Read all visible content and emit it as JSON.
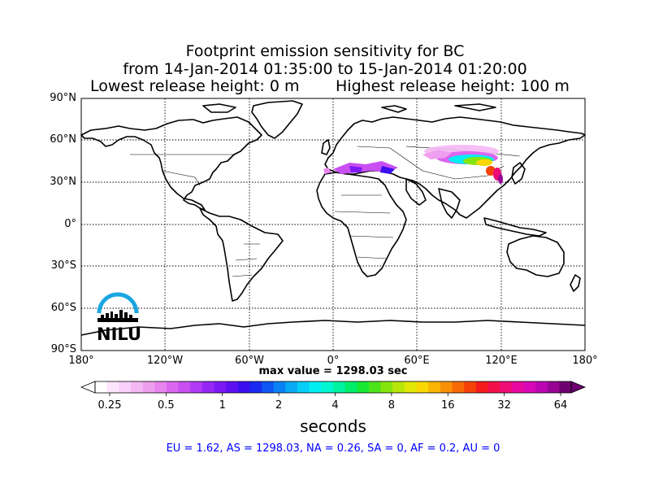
{
  "title": {
    "line1": "Footprint emission sensitivity for BC",
    "line2": "from 14-Jan-2014 01:35:00 to 15-Jan-2014 01:20:00",
    "lowest": "Lowest release height: 0 m",
    "highest": "Highest release height: 100 m"
  },
  "map": {
    "lat_labels": [
      "90°N",
      "60°N",
      "30°N",
      "0°",
      "30°S",
      "60°S",
      "90°S"
    ],
    "lon_labels": [
      "180°",
      "120°W",
      "60°W",
      "0°",
      "60°E",
      "120°E",
      "180°"
    ],
    "max_value": "max value = 1298.03 sec",
    "logo_text": "NILU"
  },
  "colorbar": {
    "ticks": [
      "0.25",
      "0.5",
      "1",
      "2",
      "4",
      "8",
      "16",
      "32",
      "64"
    ],
    "colors": [
      "#ffffff",
      "#fde6fd",
      "#f9d0f9",
      "#f4b8f4",
      "#ef9fef",
      "#e884ee",
      "#dc66f0",
      "#c94ff2",
      "#b03af5",
      "#9628f5",
      "#7c19f4",
      "#5e10f2",
      "#3b0ff0",
      "#1a2af0",
      "#0d56f2",
      "#0b82f4",
      "#08aaf5",
      "#05cff6",
      "#02eef3",
      "#00f7d2",
      "#00f3a0",
      "#00ee6a",
      "#18e832",
      "#4ee41a",
      "#86e40e",
      "#b9e60a",
      "#e1e808",
      "#f9d806",
      "#fbb505",
      "#f99005",
      "#f76a06",
      "#f54208",
      "#f41c1c",
      "#f2104a",
      "#ee0c76",
      "#e809a0",
      "#d808b8",
      "#bc06b4",
      "#980594",
      "#6e0070"
    ],
    "units": "seconds"
  },
  "regions_text": "EU = 1.62,  AS = 1298.03,  NA = 0.26,  SA = 0,  AF = 0.2,  AU = 0"
}
